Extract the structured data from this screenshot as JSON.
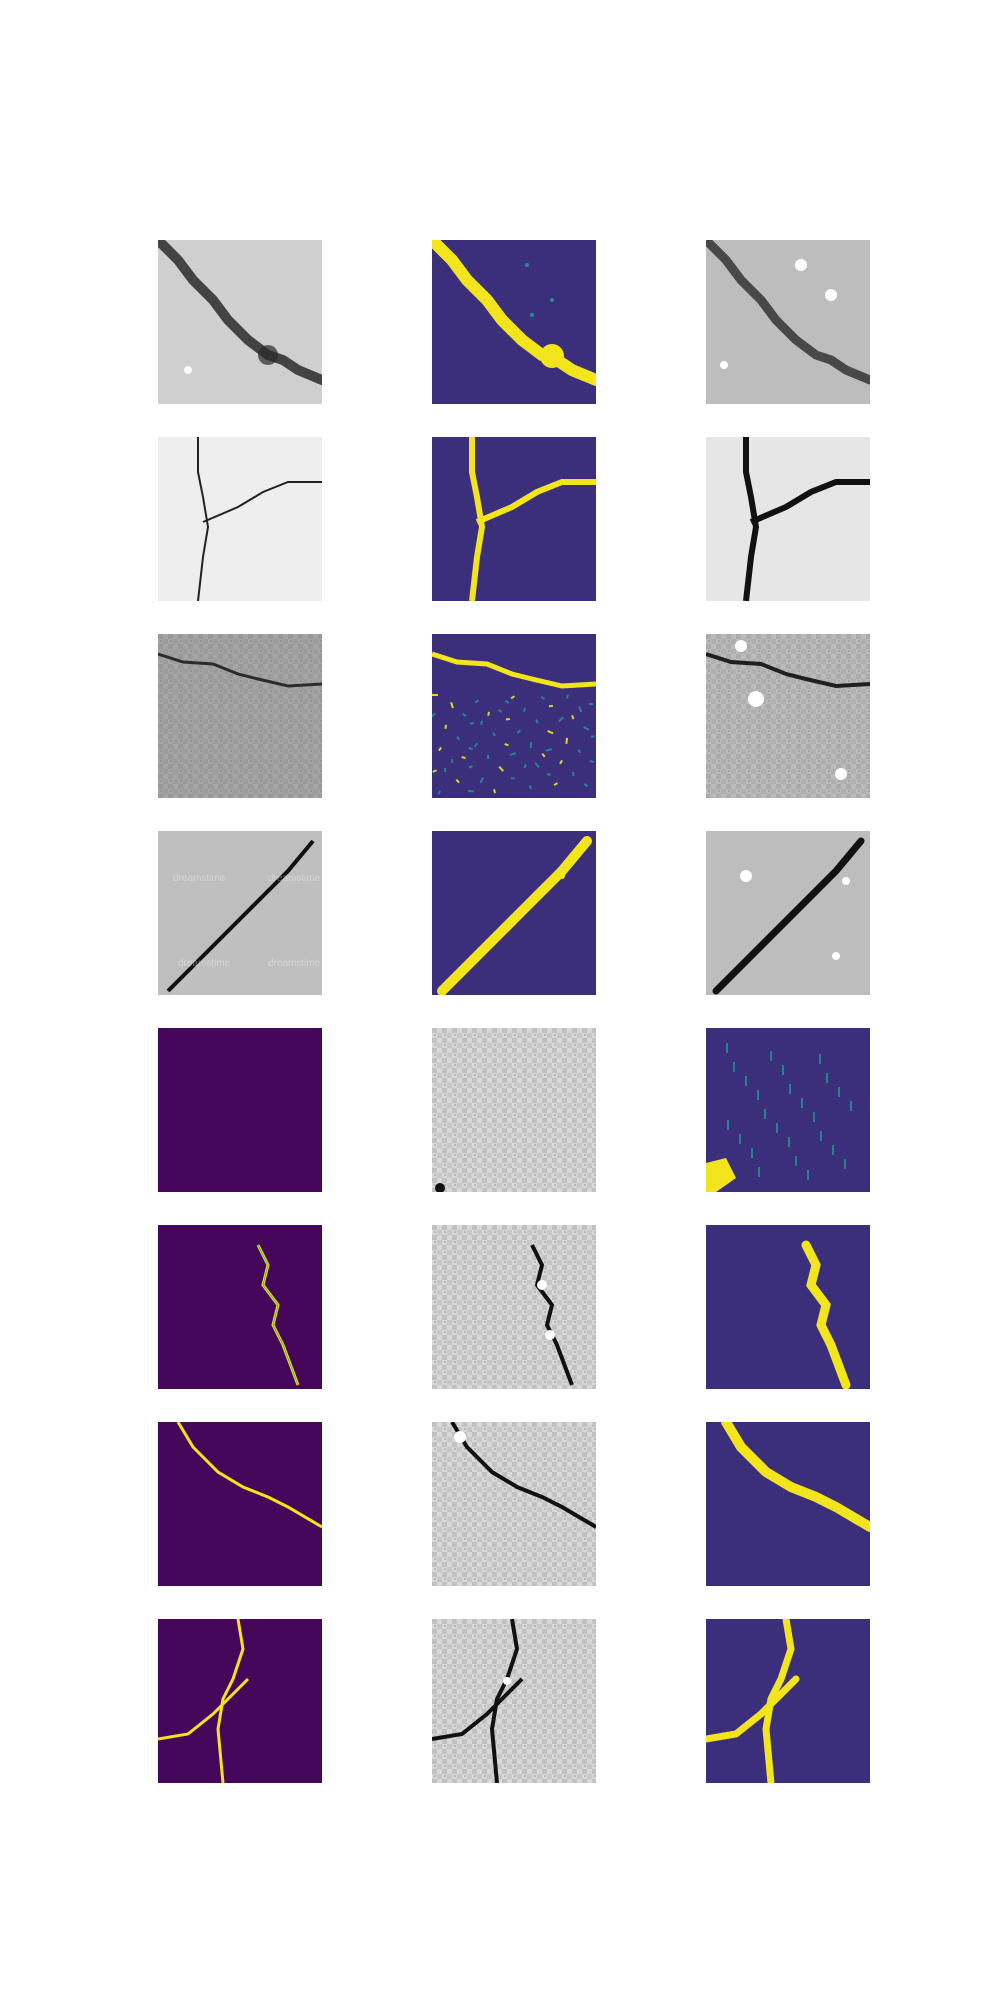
{
  "figure": {
    "background": "#ffffff",
    "grid": {
      "rows": 8,
      "cols": 3
    },
    "colors": {
      "viridis_dark": "#46065a",
      "viridis_mid": "#3b2f7c",
      "viridis_teal": "#21918c",
      "viridis_yellow": "#f2e51b",
      "gray_light": "#d9d9d9",
      "gray_mid": "#a8a8a8",
      "crack_dark": "#111111"
    },
    "panels": [
      {
        "row": 1,
        "col": 1,
        "kind": "grayscale-photo",
        "content": "diagonal crack, top-left to bottom-right, rough concrete"
      },
      {
        "row": 1,
        "col": 2,
        "kind": "viridis-mask",
        "content": "yellow crack prediction with small teal specks"
      },
      {
        "row": 1,
        "col": 3,
        "kind": "grayscale-reconstruction",
        "content": "crack with white blobs"
      },
      {
        "row": 2,
        "col": 1,
        "kind": "grayscale-photo",
        "content": "branching Y crack on light surface"
      },
      {
        "row": 2,
        "col": 2,
        "kind": "viridis-mask",
        "content": "yellow Y crack"
      },
      {
        "row": 2,
        "col": 3,
        "kind": "grayscale-reconstruction",
        "content": "dark Y crack"
      },
      {
        "row": 3,
        "col": 1,
        "kind": "grayscale-photo",
        "content": "thin horizontal crack near top, textured gravel"
      },
      {
        "row": 3,
        "col": 2,
        "kind": "viridis-mask",
        "content": "yellow crack with many noisy specks"
      },
      {
        "row": 3,
        "col": 3,
        "kind": "grayscale-reconstruction",
        "content": "crack with white spots"
      },
      {
        "row": 4,
        "col": 1,
        "kind": "grayscale-photo",
        "content": "diagonal crack bottom-left to top-right with watermark text"
      },
      {
        "row": 4,
        "col": 2,
        "kind": "viridis-mask",
        "content": "yellow diagonal crack"
      },
      {
        "row": 4,
        "col": 3,
        "kind": "grayscale-reconstruction",
        "content": "dark diagonal crack with white spots"
      },
      {
        "row": 5,
        "col": 1,
        "kind": "viridis-empty",
        "content": "uniform dark purple"
      },
      {
        "row": 5,
        "col": 2,
        "kind": "grayscale-noise",
        "content": "checkered noise"
      },
      {
        "row": 5,
        "col": 3,
        "kind": "viridis-mask",
        "content": "noisy grid with yellow blob bottom-left"
      },
      {
        "row": 6,
        "col": 1,
        "kind": "viridis-mask",
        "content": "thin vertical wavy crack"
      },
      {
        "row": 6,
        "col": 2,
        "kind": "grayscale-noise",
        "content": "noise with dark vertical crack"
      },
      {
        "row": 6,
        "col": 3,
        "kind": "viridis-mask",
        "content": "thick yellow vertical crack"
      },
      {
        "row": 7,
        "col": 1,
        "kind": "viridis-mask",
        "content": "crack top-left to right edge"
      },
      {
        "row": 7,
        "col": 2,
        "kind": "grayscale-noise",
        "content": "noise with dark crack"
      },
      {
        "row": 7,
        "col": 3,
        "kind": "viridis-mask",
        "content": "thick yellow crack"
      },
      {
        "row": 8,
        "col": 1,
        "kind": "viridis-mask",
        "content": "two crossing cracks"
      },
      {
        "row": 8,
        "col": 2,
        "kind": "grayscale-noise",
        "content": "noise with dark crossing cracks"
      },
      {
        "row": 8,
        "col": 3,
        "kind": "viridis-mask",
        "content": "thick yellow crossing cracks"
      }
    ]
  }
}
